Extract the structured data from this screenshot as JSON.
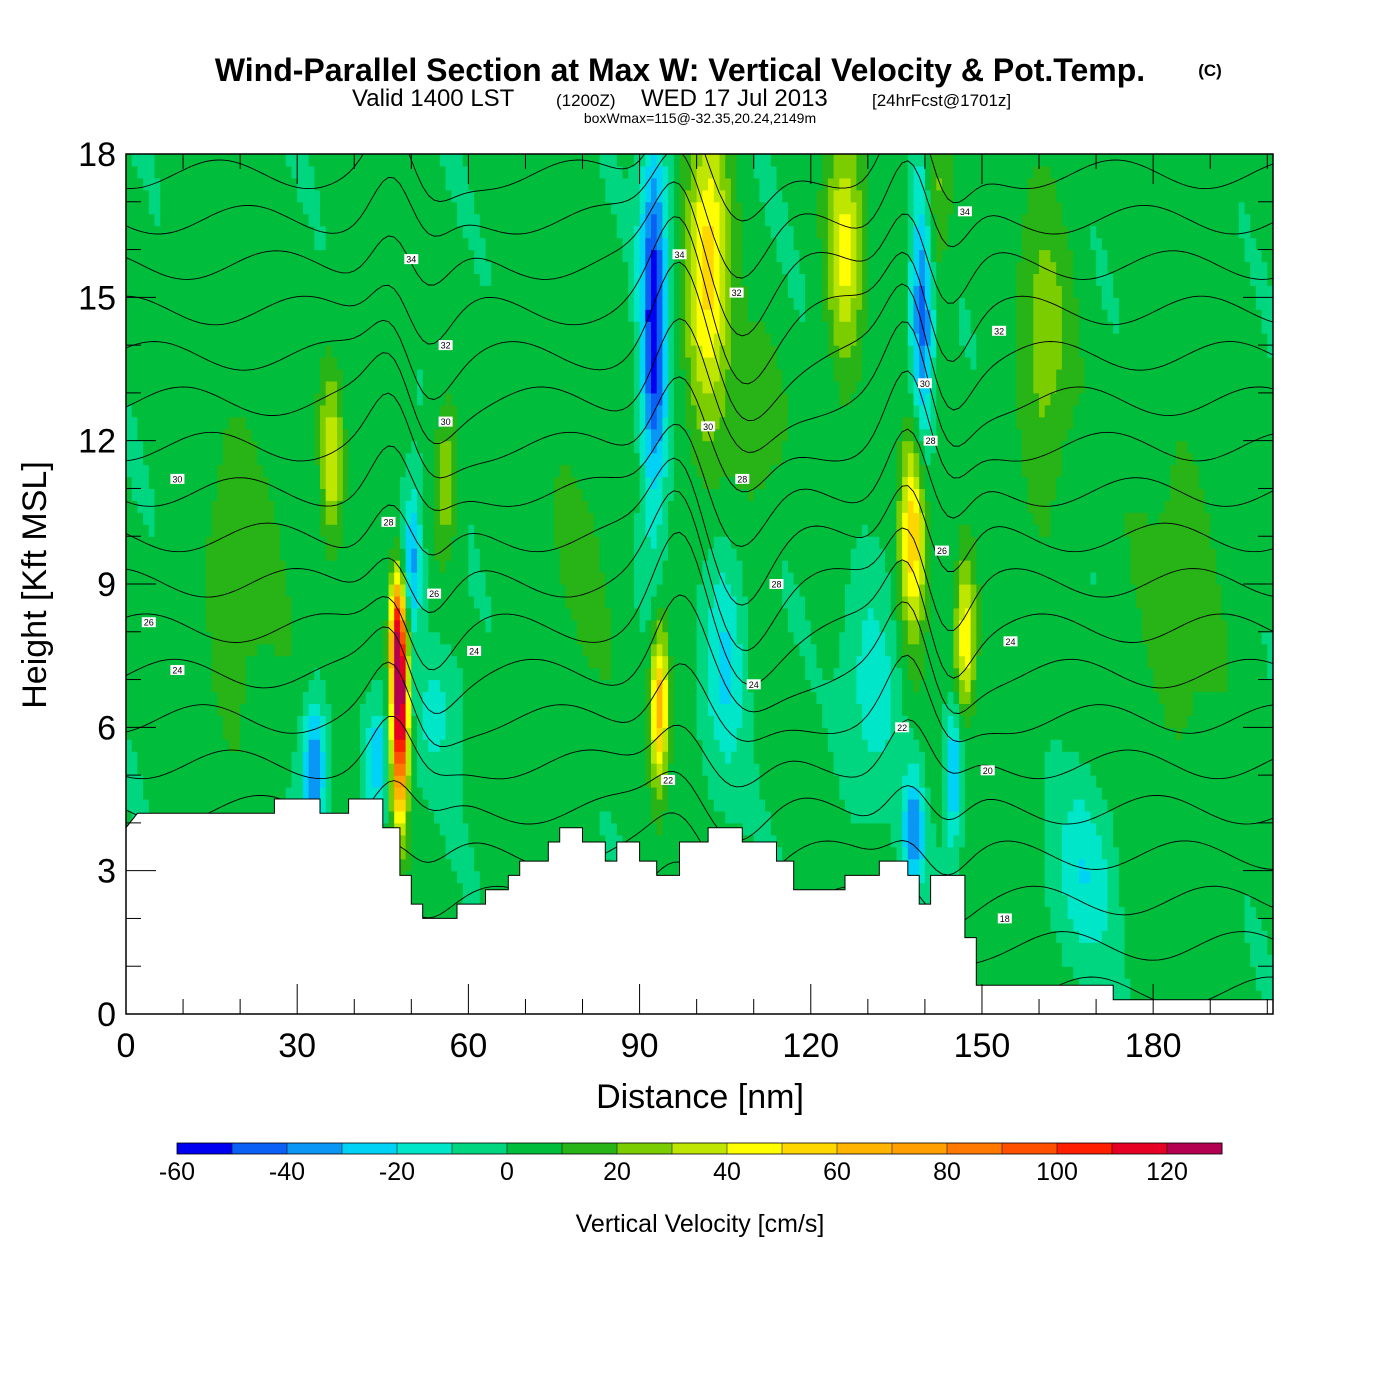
{
  "header": {
    "title_main": "Wind-Parallel Section at Max W: Vertical Velocity & Pot.Temp.",
    "title_mark": "(C)",
    "valid_prefix": "Valid 1400 LST",
    "valid_utc": "(1200Z)",
    "valid_date": "WED 17 Jul 2013",
    "forecast": "[24hrFcst@1701z]",
    "box_info": "boxWmax=115@-32.35,20.24,2149m"
  },
  "chart_data": {
    "type": "heatmap",
    "xlabel": "Distance [nm]",
    "ylabel": "Height [Kft MSL]",
    "xlim": [
      0,
      201
    ],
    "ylim": [
      0,
      18
    ],
    "x_ticks": [
      "0",
      "30",
      "60",
      "90",
      "120",
      "150",
      "180"
    ],
    "x_tick_values": [
      0,
      30,
      60,
      90,
      120,
      150,
      180
    ],
    "y_ticks": [
      "0",
      "3",
      "6",
      "9",
      "12",
      "15",
      "18"
    ],
    "y_tick_values": [
      0,
      3,
      6,
      9,
      12,
      15,
      18
    ],
    "colorbar": {
      "label": "Vertical Velocity [cm/s]",
      "min": -60,
      "max": 130,
      "step": 10,
      "tick_labels": [
        "-60",
        "-40",
        "-20",
        "0",
        "20",
        "40",
        "60",
        "80",
        "100",
        "120"
      ],
      "tick_values": [
        -60,
        -40,
        -20,
        0,
        20,
        40,
        60,
        80,
        100,
        120
      ],
      "colors": [
        "#0000f0",
        "#0a5ff5",
        "#0a96f5",
        "#00d2f5",
        "#00e6c8",
        "#00d680",
        "#00be3c",
        "#28b416",
        "#7ccd00",
        "#bee600",
        "#ffff00",
        "#ffd700",
        "#ffb400",
        "#ffa000",
        "#ff7800",
        "#ff5000",
        "#ff1e00",
        "#e60023",
        "#b40050"
      ]
    },
    "terrain_kft": [
      [
        0,
        3.9
      ],
      [
        2,
        4.2
      ],
      [
        26,
        4.2
      ],
      [
        26,
        4.5
      ],
      [
        34,
        4.5
      ],
      [
        34,
        4.2
      ],
      [
        39,
        4.2
      ],
      [
        39,
        4.5
      ],
      [
        45,
        4.5
      ],
      [
        45,
        3.9
      ],
      [
        48,
        3.9
      ],
      [
        48,
        2.9
      ],
      [
        50,
        2.9
      ],
      [
        50,
        2.3
      ],
      [
        52,
        2.3
      ],
      [
        52,
        2.0
      ],
      [
        58,
        2.0
      ],
      [
        58,
        2.3
      ],
      [
        63,
        2.3
      ],
      [
        63,
        2.6
      ],
      [
        67,
        2.6
      ],
      [
        67,
        2.9
      ],
      [
        69,
        2.9
      ],
      [
        69,
        3.2
      ],
      [
        74,
        3.2
      ],
      [
        74,
        3.6
      ],
      [
        76,
        3.6
      ],
      [
        76,
        3.9
      ],
      [
        80,
        3.9
      ],
      [
        80,
        3.6
      ],
      [
        84,
        3.6
      ],
      [
        84,
        3.2
      ],
      [
        86,
        3.2
      ],
      [
        86,
        3.6
      ],
      [
        90,
        3.6
      ],
      [
        90,
        3.2
      ],
      [
        93,
        3.2
      ],
      [
        93,
        2.9
      ],
      [
        97,
        2.9
      ],
      [
        97,
        3.6
      ],
      [
        102,
        3.6
      ],
      [
        102,
        3.9
      ],
      [
        108,
        3.9
      ],
      [
        108,
        3.6
      ],
      [
        114,
        3.6
      ],
      [
        114,
        3.2
      ],
      [
        117,
        3.2
      ],
      [
        117,
        2.6
      ],
      [
        126,
        2.6
      ],
      [
        126,
        2.9
      ],
      [
        132,
        2.9
      ],
      [
        132,
        3.2
      ],
      [
        137,
        3.2
      ],
      [
        137,
        2.9
      ],
      [
        139,
        2.9
      ],
      [
        139,
        2.3
      ],
      [
        141,
        2.3
      ],
      [
        141,
        2.9
      ],
      [
        147,
        2.9
      ],
      [
        147,
        1.6
      ],
      [
        149,
        1.6
      ],
      [
        149,
        0.6
      ],
      [
        173,
        0.6
      ],
      [
        173,
        0.3
      ],
      [
        201,
        0.3
      ]
    ],
    "vertical_velocity_features": [
      {
        "x": 48,
        "z": 6.4,
        "sx": 0.9,
        "sz": 2.2,
        "w": 130
      },
      {
        "x": 47.5,
        "z": 8.0,
        "sx": 0.8,
        "sz": 1.2,
        "w": 60
      },
      {
        "x": 36,
        "z": 11.6,
        "sx": 1.2,
        "sz": 1.8,
        "w": 35
      },
      {
        "x": 56,
        "z": 11.2,
        "sx": 1.4,
        "sz": 1.5,
        "w": 30
      },
      {
        "x": 102,
        "z": 15.5,
        "sx": 2.4,
        "sz": 3.2,
        "w": 52
      },
      {
        "x": 93.5,
        "z": 6.5,
        "sx": 1.0,
        "sz": 1.6,
        "w": 65
      },
      {
        "x": 138,
        "z": 10.2,
        "sx": 1.5,
        "sz": 2.2,
        "w": 62
      },
      {
        "x": 147,
        "z": 7.8,
        "sx": 1.2,
        "sz": 1.6,
        "w": 48
      },
      {
        "x": 126,
        "z": 16.0,
        "sx": 2.0,
        "sz": 2.5,
        "w": 40
      },
      {
        "x": 141,
        "z": 17.0,
        "sx": 2.0,
        "sz": 2.0,
        "w": 30
      },
      {
        "x": 161,
        "z": 14.0,
        "sx": 3.0,
        "sz": 3.5,
        "w": 22
      },
      {
        "x": 110,
        "z": 12.0,
        "sx": 3.0,
        "sz": 2.0,
        "w": 15
      },
      {
        "x": 92.5,
        "z": 14.5,
        "sx": 1.5,
        "sz": 4.0,
        "w": -60
      },
      {
        "x": 139.5,
        "z": 15.0,
        "sx": 1.3,
        "sz": 3.5,
        "w": -55
      },
      {
        "x": 50,
        "z": 9.5,
        "sx": 1.2,
        "sz": 1.5,
        "w": -40
      },
      {
        "x": 33,
        "z": 5.2,
        "sx": 1.3,
        "sz": 1.4,
        "w": -45
      },
      {
        "x": 44,
        "z": 5.3,
        "sx": 1.2,
        "sz": 1.1,
        "w": -35
      },
      {
        "x": 138,
        "z": 3.8,
        "sx": 1.2,
        "sz": 1.2,
        "w": -42
      },
      {
        "x": 145,
        "z": 5.0,
        "sx": 1.0,
        "sz": 1.5,
        "w": -40
      },
      {
        "x": 105,
        "z": 7.5,
        "sx": 2.2,
        "sz": 2.5,
        "w": -25
      },
      {
        "x": 131,
        "z": 7.0,
        "sx": 3.0,
        "sz": 2.5,
        "w": -18
      },
      {
        "x": 168,
        "z": 3.0,
        "sx": 3.5,
        "sz": 2.0,
        "w": -20
      },
      {
        "x": 55,
        "z": 6.5,
        "sx": 3.0,
        "sz": 1.5,
        "w": -15
      },
      {
        "x": 20,
        "z": 9.0,
        "sx": 5.0,
        "sz": 4.0,
        "w": 12
      },
      {
        "x": 185,
        "z": 9.0,
        "sx": 6.0,
        "sz": 5.0,
        "w": 10
      },
      {
        "x": 80,
        "z": 10.0,
        "sx": 5.0,
        "sz": 4.0,
        "w": 8
      }
    ],
    "theta_contours": {
      "levels_c": [
        18,
        19,
        20,
        21,
        22,
        23,
        24,
        25,
        26,
        27,
        28,
        29,
        30,
        31,
        32,
        33,
        34,
        35,
        36
      ],
      "labels": [
        {
          "text": "34",
          "x": 50,
          "z": 15.8
        },
        {
          "text": "32",
          "x": 56,
          "z": 14.0
        },
        {
          "text": "30",
          "x": 56,
          "z": 12.4
        },
        {
          "text": "30",
          "x": 9,
          "z": 11.2
        },
        {
          "text": "28",
          "x": 46,
          "z": 10.3
        },
        {
          "text": "26",
          "x": 54,
          "z": 8.8
        },
        {
          "text": "26",
          "x": 4,
          "z": 8.2
        },
        {
          "text": "24",
          "x": 61,
          "z": 7.6
        },
        {
          "text": "24",
          "x": 9,
          "z": 7.2
        },
        {
          "text": "34",
          "x": 97,
          "z": 15.9
        },
        {
          "text": "32",
          "x": 107,
          "z": 15.1
        },
        {
          "text": "30",
          "x": 102,
          "z": 12.3
        },
        {
          "text": "28",
          "x": 108,
          "z": 11.2
        },
        {
          "text": "28",
          "x": 114,
          "z": 9.0
        },
        {
          "text": "24",
          "x": 110,
          "z": 6.9
        },
        {
          "text": "22",
          "x": 95,
          "z": 4.9
        },
        {
          "text": "34",
          "x": 147,
          "z": 16.8
        },
        {
          "text": "32",
          "x": 153,
          "z": 14.3
        },
        {
          "text": "30",
          "x": 140,
          "z": 13.2
        },
        {
          "text": "28",
          "x": 141,
          "z": 12.0
        },
        {
          "text": "26",
          "x": 143,
          "z": 9.7
        },
        {
          "text": "24",
          "x": 155,
          "z": 7.8
        },
        {
          "text": "22",
          "x": 136,
          "z": 6.0
        },
        {
          "text": "20",
          "x": 151,
          "z": 5.1
        },
        {
          "text": "18",
          "x": 154,
          "z": 2.0
        }
      ]
    }
  }
}
